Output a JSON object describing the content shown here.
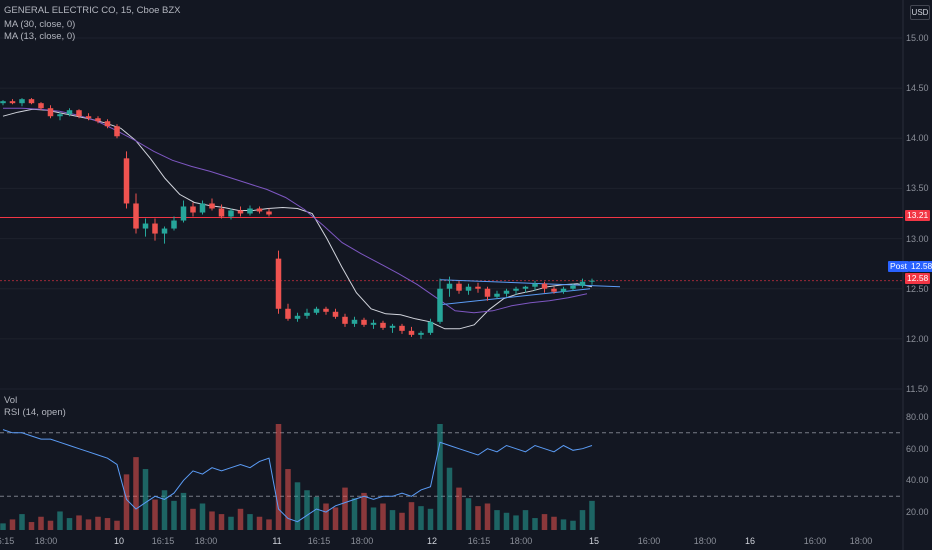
{
  "legend": {
    "symbol": "GENERAL ELECTRIC CO, 15, Cboe BZX",
    "ma30": "MA (30, close, 0)",
    "ma13": "MA (13, close, 0)",
    "vol": "Vol",
    "rsi": "RSI (14, open)",
    "currency": "USD"
  },
  "tags": {
    "resistance_value": "13.21",
    "post_label": "Post",
    "post_value": "12.58",
    "last_value": "12.58"
  },
  "colors": {
    "background": "#131722",
    "up": "#26a69a",
    "down": "#ef5350",
    "ma13": "#d1d4dc",
    "ma30": "#7e57c2",
    "rsi": "#5b9cf6",
    "horizontal_line": "#f23645",
    "post_tag": "#2962ff",
    "trend_line": "#5b9cf6"
  },
  "price_axis": {
    "ticks": [
      "15.00",
      "14.50",
      "14.00",
      "13.50",
      "13.00",
      "12.50",
      "12.00",
      "11.50"
    ],
    "range": [
      11.5,
      15.0
    ]
  },
  "rsi_axis": {
    "ticks": [
      "80.00",
      "60.00",
      "40.00",
      "20.00"
    ],
    "range": [
      10,
      85
    ],
    "upper_band": 70,
    "lower_band": 30
  },
  "time_axis": [
    "16:15",
    "18:00",
    "10",
    "16:15",
    "18:00",
    "11",
    "16:15",
    "18:00",
    "12",
    "16:15",
    "18:00",
    "15",
    "16:00",
    "18:00",
    "16",
    "16:00",
    "18:00"
  ],
  "chart_data": {
    "type": "candlestick",
    "interval": "15",
    "series": [
      {
        "name": "MA (13, close, 0)",
        "values": [
          14.22,
          14.26,
          14.29,
          14.28,
          14.25,
          14.22,
          14.19,
          14.15,
          14.1,
          13.98,
          13.8,
          13.6,
          13.44,
          13.36,
          13.33,
          13.31,
          13.28,
          13.28,
          13.3,
          13.31,
          13.3,
          13.25,
          13.0,
          12.72,
          12.46,
          12.3,
          12.25,
          12.24,
          12.2,
          12.17,
          12.1,
          12.1,
          12.14,
          12.29,
          12.4,
          12.45,
          12.48,
          12.52,
          12.54,
          12.55,
          12.52
        ]
      },
      {
        "name": "MA (30, close, 0)",
        "values": [
          14.3,
          14.3,
          14.29,
          14.27,
          14.23,
          14.17,
          14.08,
          13.98,
          13.87,
          13.78,
          13.72,
          13.67,
          13.61,
          13.55,
          13.49,
          13.41,
          13.29,
          13.13,
          12.96,
          12.85,
          12.75,
          12.65,
          12.54,
          12.41,
          12.28,
          12.26,
          12.28,
          12.33,
          12.36,
          12.38,
          12.41,
          12.45
        ]
      }
    ],
    "candles_ohlc": [
      [
        14.35,
        14.38,
        14.33,
        14.37
      ],
      [
        14.37,
        14.39,
        14.34,
        14.35
      ],
      [
        14.35,
        14.4,
        14.32,
        14.39
      ],
      [
        14.39,
        14.4,
        14.34,
        14.35
      ],
      [
        14.35,
        14.36,
        14.28,
        14.3
      ],
      [
        14.3,
        14.33,
        14.2,
        14.22
      ],
      [
        14.22,
        14.26,
        14.18,
        14.24
      ],
      [
        14.24,
        14.3,
        14.22,
        14.28
      ],
      [
        14.28,
        14.29,
        14.2,
        14.22
      ],
      [
        14.22,
        14.25,
        14.18,
        14.2
      ],
      [
        14.2,
        14.22,
        14.15,
        14.17
      ],
      [
        14.17,
        14.19,
        14.1,
        14.12
      ],
      [
        14.12,
        14.14,
        14.0,
        14.02
      ],
      [
        13.8,
        13.87,
        13.3,
        13.35
      ],
      [
        13.35,
        13.45,
        13.05,
        13.1
      ],
      [
        13.1,
        13.2,
        13.02,
        13.15
      ],
      [
        13.15,
        13.2,
        12.98,
        13.05
      ],
      [
        13.05,
        13.12,
        12.95,
        13.1
      ],
      [
        13.1,
        13.22,
        13.08,
        13.18
      ],
      [
        13.18,
        13.38,
        13.16,
        13.32
      ],
      [
        13.32,
        13.36,
        13.22,
        13.26
      ],
      [
        13.26,
        13.38,
        13.24,
        13.35
      ],
      [
        13.35,
        13.4,
        13.28,
        13.3
      ],
      [
        13.3,
        13.34,
        13.2,
        13.22
      ],
      [
        13.22,
        13.3,
        13.19,
        13.28
      ],
      [
        13.28,
        13.32,
        13.22,
        13.25
      ],
      [
        13.25,
        13.33,
        13.23,
        13.3
      ],
      [
        13.3,
        13.32,
        13.25,
        13.27
      ],
      [
        13.27,
        13.3,
        13.22,
        13.24
      ],
      [
        12.8,
        12.88,
        12.25,
        12.3
      ],
      [
        12.3,
        12.35,
        12.18,
        12.2
      ],
      [
        12.2,
        12.26,
        12.17,
        12.23
      ],
      [
        12.23,
        12.3,
        12.2,
        12.26
      ],
      [
        12.26,
        12.32,
        12.24,
        12.3
      ],
      [
        12.3,
        12.32,
        12.24,
        12.27
      ],
      [
        12.27,
        12.3,
        12.2,
        12.22
      ],
      [
        12.22,
        12.25,
        12.12,
        12.15
      ],
      [
        12.15,
        12.22,
        12.12,
        12.19
      ],
      [
        12.19,
        12.21,
        12.12,
        12.14
      ],
      [
        12.14,
        12.19,
        12.1,
        12.16
      ],
      [
        12.16,
        12.18,
        12.09,
        12.11
      ],
      [
        12.11,
        12.15,
        12.06,
        12.13
      ],
      [
        12.13,
        12.15,
        12.05,
        12.08
      ],
      [
        12.08,
        12.12,
        12.02,
        12.04
      ],
      [
        12.04,
        12.08,
        12.0,
        12.06
      ],
      [
        12.06,
        12.2,
        12.04,
        12.17
      ],
      [
        12.17,
        12.6,
        12.15,
        12.5
      ],
      [
        12.5,
        12.62,
        12.42,
        12.55
      ],
      [
        12.55,
        12.58,
        12.45,
        12.48
      ],
      [
        12.48,
        12.55,
        12.44,
        12.52
      ],
      [
        12.52,
        12.56,
        12.46,
        12.5
      ],
      [
        12.5,
        12.52,
        12.38,
        12.42
      ],
      [
        12.42,
        12.48,
        12.4,
        12.45
      ],
      [
        12.45,
        12.5,
        12.42,
        12.48
      ],
      [
        12.48,
        12.52,
        12.44,
        12.5
      ],
      [
        12.5,
        12.53,
        12.46,
        12.52
      ],
      [
        12.52,
        12.58,
        12.48,
        12.55
      ],
      [
        12.55,
        12.57,
        12.46,
        12.5
      ],
      [
        12.5,
        12.52,
        12.45,
        12.47
      ],
      [
        12.47,
        12.52,
        12.45,
        12.5
      ],
      [
        12.5,
        12.55,
        12.48,
        12.53
      ],
      [
        12.53,
        12.6,
        12.51,
        12.57
      ],
      [
        12.57,
        12.6,
        12.54,
        12.58
      ]
    ],
    "volume": [
      5,
      8,
      12,
      6,
      10,
      7,
      14,
      9,
      11,
      8,
      10,
      9,
      7,
      42,
      55,
      46,
      23,
      30,
      22,
      28,
      16,
      20,
      14,
      12,
      10,
      16,
      12,
      10,
      8,
      80,
      46,
      36,
      30,
      25,
      20,
      17,
      32,
      24,
      28,
      17,
      20,
      15,
      13,
      21,
      18,
      16,
      80,
      47,
      32,
      24,
      18,
      20,
      15,
      13,
      11,
      15,
      9,
      12,
      10,
      8,
      7,
      15,
      22
    ],
    "rsi": [
      72,
      70,
      70,
      68,
      66,
      66,
      64,
      62,
      60,
      58,
      56,
      54,
      50,
      28,
      22,
      26,
      30,
      28,
      32,
      40,
      46,
      44,
      48,
      46,
      48,
      50,
      48,
      52,
      54,
      22,
      16,
      14,
      18,
      22,
      20,
      24,
      26,
      28,
      30,
      28,
      30,
      30,
      32,
      30,
      34,
      36,
      64,
      62,
      60,
      58,
      56,
      60,
      58,
      62,
      60,
      58,
      62,
      60,
      58,
      62,
      59,
      60,
      62
    ],
    "horizontal_line": 13.21
  }
}
